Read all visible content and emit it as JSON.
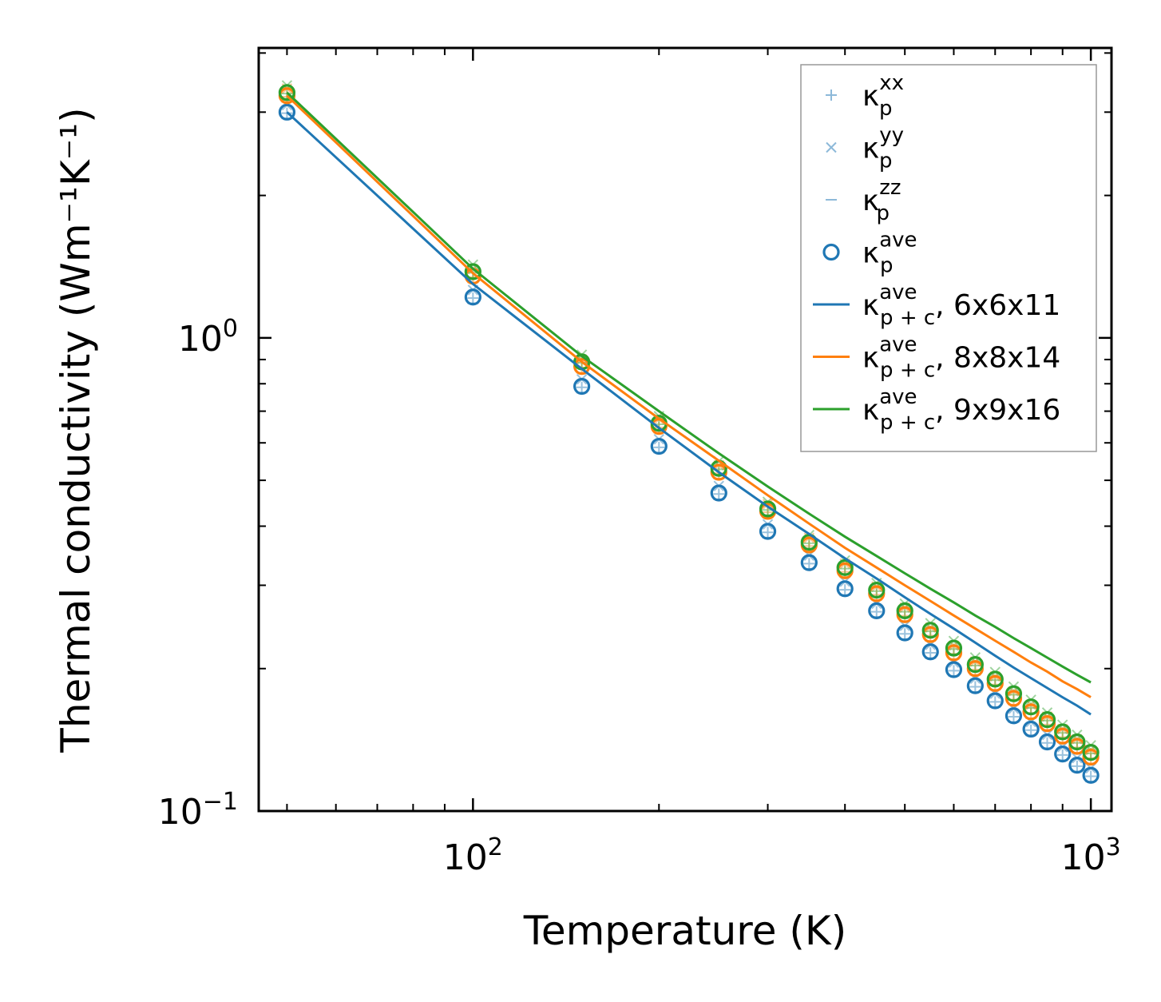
{
  "chart_data": {
    "type": "scatter",
    "scale": {
      "x": "log",
      "y": "log"
    },
    "xlabel": "Temperature (K)",
    "ylabel": "Thermal conductivity (Wm⁻¹K⁻¹)",
    "xlim": [
      45,
      1080
    ],
    "ylim": [
      0.1,
      4.1
    ],
    "x_tick_labels": [
      {
        "value": 100,
        "base": "10",
        "exp": "2"
      },
      {
        "value": 1000,
        "base": "10",
        "exp": "3"
      }
    ],
    "y_tick_labels": [
      {
        "value": 0.1,
        "base": "10",
        "exp": "−1"
      },
      {
        "value": 1,
        "base": "10",
        "exp": "0"
      }
    ],
    "temperatures": [
      50,
      100,
      150,
      200,
      250,
      300,
      350,
      400,
      450,
      500,
      550,
      600,
      650,
      700,
      750,
      800,
      850,
      900,
      950,
      1000
    ],
    "series": [
      {
        "name": "6x6x11",
        "color": "#1f77b4",
        "kp_ave": [
          3.0,
          1.22,
          0.79,
          0.59,
          0.47,
          0.39,
          0.335,
          0.295,
          0.265,
          0.238,
          0.217,
          0.199,
          0.184,
          0.171,
          0.159,
          0.149,
          0.14,
          0.132,
          0.125,
          0.119
        ],
        "kp_ave_pc": [
          3.0,
          1.3,
          0.86,
          0.645,
          0.52,
          0.44,
          0.385,
          0.342,
          0.31,
          0.283,
          0.261,
          0.243,
          0.227,
          0.213,
          0.201,
          0.191,
          0.182,
          0.174,
          0.167,
          0.16
        ]
      },
      {
        "name": "8x8x14",
        "color": "#ff7f0e",
        "kp_ave": [
          3.25,
          1.35,
          0.87,
          0.65,
          0.52,
          0.43,
          0.365,
          0.322,
          0.288,
          0.26,
          0.236,
          0.216,
          0.2,
          0.186,
          0.173,
          0.162,
          0.153,
          0.144,
          0.137,
          0.13
        ],
        "kp_ave_pc": [
          3.25,
          1.37,
          0.89,
          0.675,
          0.55,
          0.465,
          0.405,
          0.36,
          0.327,
          0.3,
          0.278,
          0.259,
          0.243,
          0.229,
          0.217,
          0.206,
          0.197,
          0.188,
          0.181,
          0.174
        ]
      },
      {
        "name": "9x9x16",
        "color": "#2ca02c",
        "kp_ave": [
          3.3,
          1.38,
          0.89,
          0.66,
          0.53,
          0.435,
          0.37,
          0.327,
          0.293,
          0.265,
          0.241,
          0.221,
          0.204,
          0.19,
          0.177,
          0.166,
          0.156,
          0.147,
          0.14,
          0.133
        ],
        "kp_ave_pc": [
          3.3,
          1.4,
          0.915,
          0.7,
          0.57,
          0.485,
          0.425,
          0.38,
          0.346,
          0.318,
          0.295,
          0.276,
          0.259,
          0.245,
          0.232,
          0.221,
          0.211,
          0.202,
          0.194,
          0.187
        ]
      }
    ],
    "legend": {
      "position": "top-right",
      "entries": [
        {
          "marker": "plus",
          "main": "κ",
          "sub": "p",
          "sup": "xx",
          "suffix": "",
          "color": "#8db9d9"
        },
        {
          "marker": "x",
          "main": "κ",
          "sub": "p",
          "sup": "yy",
          "suffix": "",
          "color": "#8db9d9"
        },
        {
          "marker": "hline",
          "main": "κ",
          "sub": "p",
          "sup": "zz",
          "suffix": "",
          "color": "#8db9d9"
        },
        {
          "marker": "circle",
          "main": "κ",
          "sub": "p",
          "sup": "ave",
          "suffix": "",
          "color": "#1f77b4"
        },
        {
          "marker": "line",
          "main": "κ",
          "sub": "p + c",
          "sup": "ave",
          "suffix": ", 6x6x11",
          "color": "#1f77b4"
        },
        {
          "marker": "line",
          "main": "κ",
          "sub": "p + c",
          "sup": "ave",
          "suffix": ", 8x8x14",
          "color": "#ff7f0e"
        },
        {
          "marker": "line",
          "main": "κ",
          "sub": "p + c",
          "sup": "ave",
          "suffix": ", 9x9x16",
          "color": "#2ca02c"
        }
      ]
    }
  }
}
